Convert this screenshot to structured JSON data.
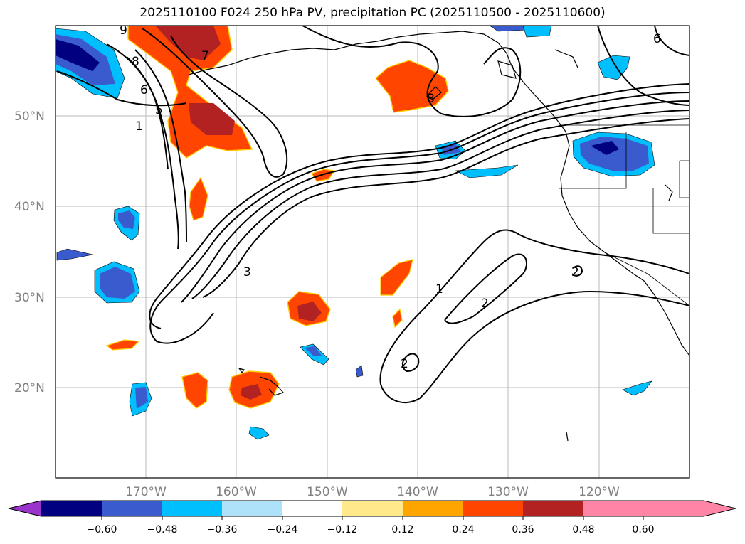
{
  "title": "2025110100 F024 250 hPa PV, precipitation PC (2025110500 - 2025110600)",
  "map": {
    "lon_range": [
      -180,
      -110
    ],
    "lat_range": [
      10,
      60
    ],
    "lat_labels": [
      "50°N",
      "40°N",
      "30°N",
      "20°N"
    ],
    "lon_labels": [
      "170°W",
      "160°W",
      "150°W",
      "140°W",
      "130°W",
      "120°W"
    ],
    "contour_labels": [
      "9",
      "8",
      "6",
      "5",
      "7",
      "1",
      "3",
      "8",
      "1",
      "2",
      "2",
      "2",
      "6"
    ]
  },
  "colorbar": {
    "tick_labels": [
      "−0.60",
      "−0.48",
      "−0.36",
      "−0.24",
      "−0.12",
      "0.12",
      "0.24",
      "0.36",
      "0.48",
      "0.60"
    ],
    "colors": [
      "#9933cc",
      "#000080",
      "#3a5bcd",
      "#00bfff",
      "#aee1fa",
      "#ffffff",
      "#ffe98a",
      "#ffa500",
      "#ff4500",
      "#b22222",
      "#ff85a6"
    ]
  }
}
